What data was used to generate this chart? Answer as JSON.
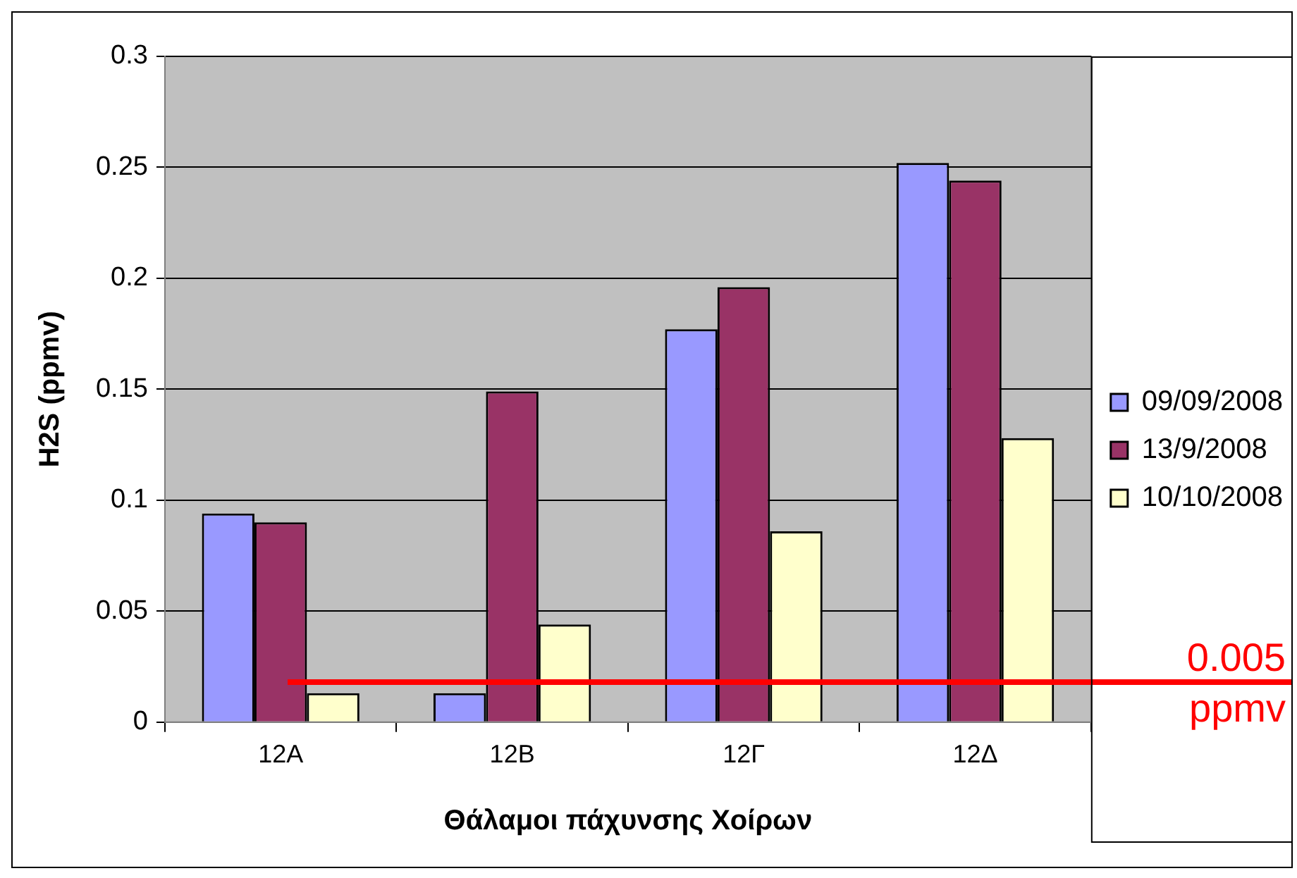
{
  "chart_data": {
    "type": "bar",
    "xlabel": "Θάλαμοι πάχυνσης Χοίρων",
    "ylabel": "H2S (ppmv)",
    "categories": [
      "12A",
      "12B",
      "12Γ",
      "12Δ"
    ],
    "series": [
      {
        "name": "09/09/2008",
        "color": "#9999ff",
        "values": [
          0.094,
          0.013,
          0.177,
          0.252
        ]
      },
      {
        "name": "13/9/2008",
        "color": "#993366",
        "values": [
          0.09,
          0.149,
          0.196,
          0.244
        ]
      },
      {
        "name": "10/10/2008",
        "color": "#ffffcc",
        "values": [
          0.013,
          0.044,
          0.086,
          0.128
        ]
      }
    ],
    "ylim": [
      0,
      0.3
    ],
    "yticks": [
      0,
      0.05,
      0.1,
      0.15,
      0.2,
      0.25,
      0.3
    ],
    "grid": "y",
    "legend": "right",
    "ref_lines": [
      {
        "axis": "y",
        "value": 0.018,
        "label": "0.005 ppmv",
        "color": "#ff0000"
      }
    ]
  }
}
